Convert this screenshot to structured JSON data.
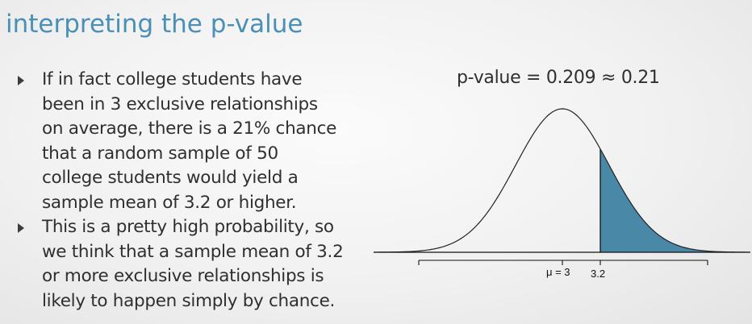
{
  "title": "interpreting the p-value",
  "bullets": [
    {
      "lines": [
        "If in fact college students have",
        "been in 3 exclusive relationships",
        "on average, there is a 21% chance",
        "that a random sample of 50",
        "college students would yield a",
        "sample mean of 3.2 or higher."
      ]
    },
    {
      "lines": [
        "This is a pretty high probability, so",
        "we think that a sample mean of 3.2",
        "or more exclusive relationships is",
        "likely to happen simply by chance."
      ]
    }
  ],
  "figure": {
    "label": "p-value = 0.209 ≈ 0.21",
    "tick_labels": {
      "mean": "μ = 3",
      "observed": "3.2"
    },
    "colors": {
      "shade": "#4a88a8",
      "curve": "#222222",
      "title": "#4a90b6"
    }
  },
  "chart_data": {
    "type": "area",
    "distribution": "normal",
    "mean": 3,
    "observed_value": 3.2,
    "shaded_region": "upper tail (x ≥ 3.2)",
    "p_value": 0.209,
    "p_value_rounded": 0.21,
    "tick_labels": [
      "μ = 3",
      "3.2"
    ],
    "title": "p-value = 0.209 ≈ 0.21",
    "grid": false
  }
}
